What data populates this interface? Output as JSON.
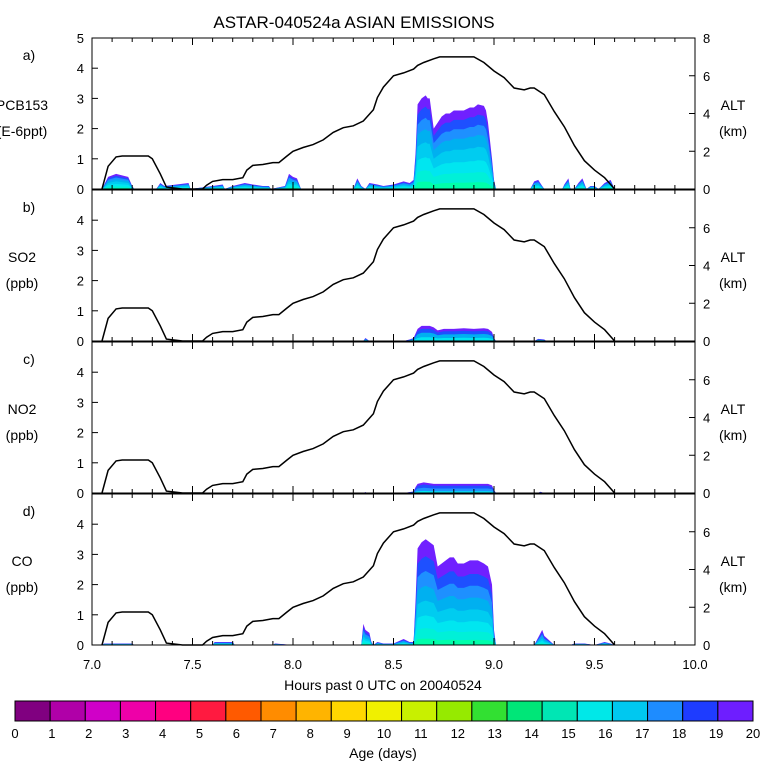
{
  "chart_data": {
    "type": "area",
    "title": "ASTAR-040524a ASIAN EMISSIONS",
    "xlabel": "Hours past 0 UTC on 20040524",
    "xlim": [
      7.0,
      10.0
    ],
    "xticks": [
      "7.0",
      "7.5",
      "8.0",
      "8.5",
      "9.0",
      "9.5",
      "10.0"
    ],
    "right_axis": {
      "label_line1": "ALT",
      "label_line2": "(km)",
      "ylim": [
        0,
        8
      ],
      "altitude_km": {
        "x": [
          7.05,
          7.08,
          7.12,
          7.15,
          7.28,
          7.3,
          7.34,
          7.37,
          7.45,
          7.5,
          7.55,
          7.57,
          7.6,
          7.65,
          7.7,
          7.75,
          7.77,
          7.8,
          7.85,
          7.9,
          7.93,
          7.97,
          8.0,
          8.05,
          8.1,
          8.15,
          8.2,
          8.25,
          8.3,
          8.35,
          8.4,
          8.42,
          8.45,
          8.5,
          8.55,
          8.6,
          8.62,
          8.65,
          8.7,
          8.73,
          8.8,
          8.9,
          8.95,
          9.0,
          9.05,
          9.1,
          9.15,
          9.18,
          9.2,
          9.25,
          9.3,
          9.35,
          9.4,
          9.45,
          9.5,
          9.55,
          9.6
        ],
        "y": [
          0,
          1.2,
          1.7,
          1.75,
          1.75,
          1.6,
          0.8,
          0.1,
          0,
          0,
          0,
          0.2,
          0.4,
          0.5,
          0.5,
          0.6,
          1.0,
          1.25,
          1.3,
          1.4,
          1.4,
          1.75,
          2.0,
          2.2,
          2.35,
          2.6,
          3.0,
          3.25,
          3.35,
          3.6,
          4.2,
          4.85,
          5.4,
          6.0,
          6.15,
          6.35,
          6.55,
          6.7,
          6.9,
          7.0,
          7.0,
          7.0,
          6.7,
          6.25,
          5.9,
          5.35,
          5.25,
          5.35,
          5.35,
          5.0,
          4.1,
          3.3,
          2.3,
          1.5,
          1.0,
          0.6,
          0
        ]
      }
    },
    "colorbar": {
      "label": "Age (days)",
      "ticks": [
        "0",
        "1",
        "2",
        "3",
        "4",
        "5",
        "6",
        "7",
        "8",
        "9",
        "10",
        "11",
        "12",
        "13",
        "14",
        "15",
        "16",
        "17",
        "18",
        "19",
        "20"
      ],
      "colors": [
        "#800080",
        "#b000a8",
        "#d000c8",
        "#ee00a8",
        "#ff0080",
        "#ff1a40",
        "#ff5a00",
        "#ff8c00",
        "#ffb400",
        "#ffd700",
        "#f0f000",
        "#c8f000",
        "#96ea00",
        "#32e032",
        "#00e678",
        "#00e6b4",
        "#00e8e8",
        "#00c8f0",
        "#1e8cff",
        "#1e3cff",
        "#6e1eff"
      ]
    },
    "panels": [
      {
        "id": "a",
        "letter": "a)",
        "label_line1": "PCB153",
        "label_line2": "(E-6ppt)",
        "ylim": [
          0,
          5
        ],
        "yticks": [
          "0",
          "1",
          "2",
          "3",
          "4",
          "5"
        ],
        "total": {
          "x": [
            7.05,
            7.08,
            7.12,
            7.18,
            7.2,
            7.21,
            7.32,
            7.34,
            7.36,
            7.48,
            7.49,
            7.6,
            7.65,
            7.66,
            7.7,
            7.76,
            7.8,
            7.85,
            7.88,
            7.89,
            7.96,
            7.98,
            8.0,
            8.02,
            8.04,
            8.14,
            8.3,
            8.32,
            8.34,
            8.36,
            8.38,
            8.42,
            8.45,
            8.5,
            8.55,
            8.58,
            8.6,
            8.61,
            8.62,
            8.64,
            8.66,
            8.67,
            8.68,
            8.7,
            8.72,
            8.74,
            8.76,
            8.78,
            8.8,
            8.82,
            8.85,
            8.88,
            8.9,
            8.92,
            8.95,
            8.96,
            8.97,
            8.99,
            9.0,
            9.01,
            9.02,
            9.05,
            9.15,
            9.18,
            9.2,
            9.22,
            9.24,
            9.25,
            9.34,
            9.35,
            9.37,
            9.38,
            9.4,
            9.42,
            9.44,
            9.46,
            9.48,
            9.5,
            9.52,
            9.55,
            9.58,
            9.6
          ],
          "y": [
            0,
            0.4,
            0.5,
            0.4,
            0.1,
            0,
            0,
            0.2,
            0.1,
            0.2,
            0,
            0.1,
            0.15,
            0,
            0.1,
            0.2,
            0.15,
            0.1,
            0.1,
            0,
            0.1,
            0.5,
            0.4,
            0.35,
            0,
            0,
            0,
            0.35,
            0.1,
            0,
            0.2,
            0.15,
            0.1,
            0.15,
            0.25,
            0.2,
            0.3,
            1.2,
            2.8,
            3.0,
            3.1,
            3.0,
            3.0,
            2.0,
            2.2,
            2.4,
            2.5,
            2.5,
            2.6,
            2.6,
            2.6,
            2.7,
            2.7,
            2.8,
            2.75,
            2.6,
            2.2,
            1.0,
            0.3,
            0,
            0,
            0,
            0,
            0,
            0.25,
            0.3,
            0.1,
            0,
            0,
            0.15,
            0.35,
            0,
            0,
            0.2,
            0.35,
            0,
            0.1,
            0.1,
            0,
            0.2,
            0.3,
            0
          ]
        },
        "layer_fractions": {
          "colors": [
            "#00ffaa",
            "#00f0d8",
            "#00e6f0",
            "#00ccf0",
            "#00b0f0",
            "#1e90ff",
            "#1e50ff",
            "#7020ff"
          ],
          "fractions": [
            0.08,
            0.12,
            0.14,
            0.16,
            0.14,
            0.12,
            0.12,
            0.12
          ]
        }
      },
      {
        "id": "b",
        "letter": "b)",
        "label_line1": "SO2",
        "label_line2": "(ppb)",
        "ylim": [
          0,
          5
        ],
        "yticks": [
          "0",
          "1",
          "2",
          "3",
          "4"
        ],
        "total": {
          "x": [
            8.3,
            8.35,
            8.36,
            8.37,
            8.38,
            8.45,
            8.55,
            8.58,
            8.6,
            8.61,
            8.62,
            8.64,
            8.66,
            8.68,
            8.7,
            8.72,
            8.75,
            8.8,
            8.85,
            8.9,
            8.95,
            8.97,
            8.99,
            9.0,
            9.01,
            9.2,
            9.22,
            9.25,
            9.26
          ],
          "y": [
            0,
            0,
            0.1,
            0.05,
            0,
            0,
            0,
            0.05,
            0.1,
            0.25,
            0.4,
            0.5,
            0.5,
            0.5,
            0.45,
            0.35,
            0.4,
            0.4,
            0.42,
            0.4,
            0.42,
            0.4,
            0.3,
            0.1,
            0,
            0,
            0.07,
            0.05,
            0
          ]
        },
        "layer_fractions": {
          "colors": [
            "#00e6f0",
            "#00b0f0",
            "#1e50ff",
            "#7020ff"
          ],
          "fractions": [
            0.25,
            0.3,
            0.25,
            0.2
          ]
        }
      },
      {
        "id": "c",
        "letter": "c)",
        "label_line1": "NO2",
        "label_line2": "(ppb)",
        "ylim": [
          0,
          5
        ],
        "yticks": [
          "0",
          "1",
          "2",
          "3",
          "4"
        ],
        "total": {
          "x": [
            8.35,
            8.36,
            8.37,
            8.55,
            8.6,
            8.61,
            8.62,
            8.65,
            8.7,
            8.8,
            8.9,
            8.97,
            8.99,
            9.0,
            9.01,
            9.22,
            9.23,
            9.25
          ],
          "y": [
            0,
            0.03,
            0,
            0,
            0.05,
            0.2,
            0.3,
            0.35,
            0.3,
            0.3,
            0.3,
            0.3,
            0.25,
            0.1,
            0,
            0,
            0.04,
            0
          ]
        },
        "layer_fractions": {
          "colors": [
            "#00e6f0",
            "#1e90ff",
            "#1e50ff",
            "#7020ff"
          ],
          "fractions": [
            0.2,
            0.3,
            0.3,
            0.2
          ]
        }
      },
      {
        "id": "d",
        "letter": "d)",
        "label_line1": "CO",
        "label_line2": "(ppb)",
        "ylim": [
          0,
          5
        ],
        "yticks": [
          "0",
          "1",
          "2",
          "3",
          "4"
        ],
        "total": {
          "x": [
            7.05,
            7.06,
            7.1,
            7.2,
            7.21,
            7.6,
            7.61,
            7.7,
            7.71,
            7.9,
            7.91,
            8.0,
            8.3,
            8.34,
            8.35,
            8.36,
            8.38,
            8.39,
            8.4,
            8.42,
            8.45,
            8.5,
            8.55,
            8.58,
            8.6,
            8.61,
            8.62,
            8.64,
            8.66,
            8.68,
            8.7,
            8.72,
            8.74,
            8.76,
            8.78,
            8.8,
            8.82,
            8.85,
            8.88,
            8.9,
            8.92,
            8.95,
            8.97,
            8.99,
            9.0,
            9.01,
            9.02,
            9.2,
            9.22,
            9.24,
            9.25,
            9.3,
            9.38,
            9.4,
            9.45,
            9.5,
            9.55,
            9.58,
            9.6
          ],
          "y": [
            0,
            0.05,
            0.05,
            0.05,
            0,
            0,
            0.1,
            0.1,
            0,
            0,
            0.05,
            0,
            0,
            0,
            0.7,
            0.5,
            0.4,
            0.1,
            0,
            0.1,
            0.05,
            0.05,
            0.2,
            0.1,
            0.1,
            1.5,
            3.2,
            3.4,
            3.5,
            3.4,
            3.3,
            2.6,
            2.7,
            2.8,
            2.9,
            2.9,
            2.7,
            2.7,
            2.8,
            2.8,
            2.8,
            2.7,
            2.6,
            2.0,
            0.5,
            0,
            0,
            0,
            0.25,
            0.5,
            0.3,
            0,
            0,
            0.05,
            0.05,
            0,
            0.1,
            0.05,
            0
          ]
        },
        "layer_fractions": {
          "colors": [
            "#00ffaa",
            "#00f0d8",
            "#00e6f0",
            "#00ccf0",
            "#00b0f0",
            "#1e90ff",
            "#1e50ff",
            "#7020ff"
          ],
          "fractions": [
            0.06,
            0.1,
            0.12,
            0.14,
            0.14,
            0.14,
            0.14,
            0.16
          ]
        }
      }
    ]
  }
}
